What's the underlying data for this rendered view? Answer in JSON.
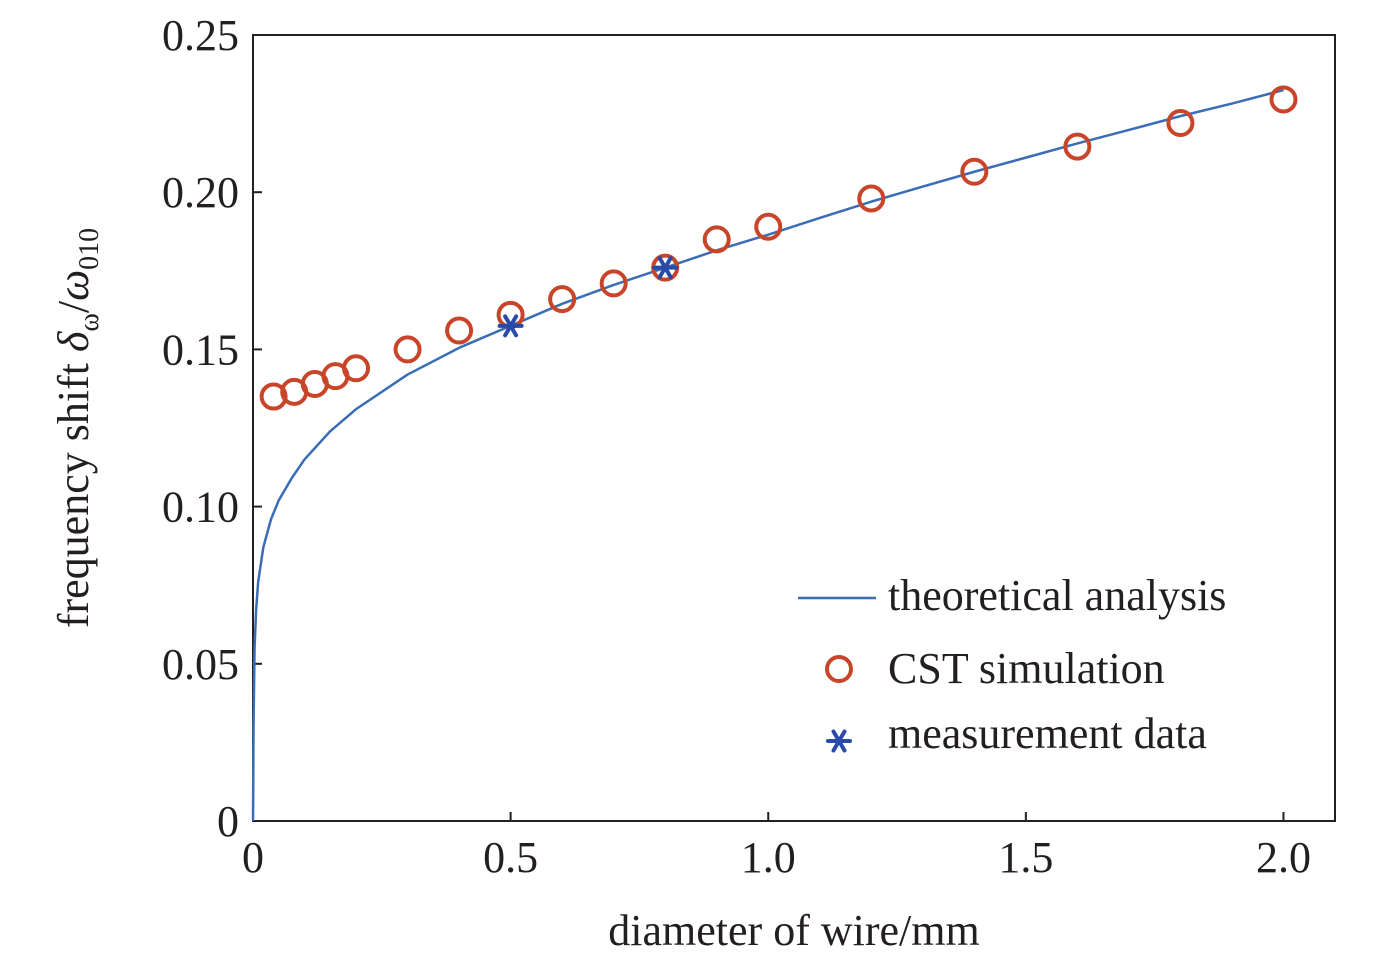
{
  "chart_data": {
    "type": "line",
    "xlabel": "diameter of wire/mm",
    "ylabel_prefix": "frequency shift ",
    "ylabel_delta": "δ",
    "ylabel_delta_sub": "ω",
    "ylabel_slash": "/",
    "ylabel_omega": "ω",
    "ylabel_omega_sub": "010",
    "xlim": [
      0,
      2.1
    ],
    "ylim": [
      0,
      0.25
    ],
    "x_ticks": [
      0,
      0.5,
      1.0,
      1.5,
      2.0
    ],
    "x_tick_labels": [
      "0",
      "0.5",
      "1.0",
      "1.5",
      "2.0"
    ],
    "y_ticks": [
      0,
      0.05,
      0.1,
      0.15,
      0.2,
      0.25
    ],
    "y_tick_labels": [
      "0",
      "0.05",
      "0.10",
      "0.15",
      "0.20",
      "0.25"
    ],
    "grid": false,
    "legend_position": "bottom-right",
    "colors": {
      "theory": "#3a6db5",
      "cst": "#c8452a",
      "measurement": "#2a4aa8",
      "axis": "#231f20"
    },
    "series": [
      {
        "name": "theoretical analysis",
        "kind": "line",
        "x": [
          0.0001,
          0.001,
          0.003,
          0.006,
          0.01,
          0.02,
          0.035,
          0.05,
          0.075,
          0.1,
          0.15,
          0.2,
          0.3,
          0.4,
          0.5,
          0.6,
          0.7,
          0.8,
          0.9,
          1.0,
          1.1,
          1.2,
          1.3,
          1.4,
          1.5,
          1.6,
          1.7,
          1.8,
          1.9,
          2.0
        ],
        "y": [
          0.0,
          0.03,
          0.055,
          0.067,
          0.076,
          0.087,
          0.096,
          0.102,
          0.109,
          0.115,
          0.124,
          0.131,
          0.142,
          0.1505,
          0.1575,
          0.1645,
          0.1705,
          0.176,
          0.1815,
          0.1865,
          0.1918,
          0.197,
          0.2018,
          0.2065,
          0.211,
          0.2155,
          0.2198,
          0.2242,
          0.2282,
          0.2325
        ]
      },
      {
        "name": "CST simulation",
        "kind": "scatter",
        "marker": "circle",
        "x": [
          0.04,
          0.08,
          0.12,
          0.16,
          0.2,
          0.3,
          0.4,
          0.5,
          0.6,
          0.7,
          0.8,
          0.9,
          1.0,
          1.2,
          1.4,
          1.6,
          1.8,
          2.0
        ],
        "y": [
          0.135,
          0.1365,
          0.139,
          0.1415,
          0.144,
          0.15,
          0.156,
          0.161,
          0.166,
          0.171,
          0.176,
          0.185,
          0.189,
          0.198,
          0.2065,
          0.2145,
          0.222,
          0.2295
        ]
      },
      {
        "name": "measurement data",
        "kind": "scatter",
        "marker": "asterisk",
        "x": [
          0.5,
          0.8
        ],
        "y": [
          0.1575,
          0.176
        ]
      }
    ]
  }
}
